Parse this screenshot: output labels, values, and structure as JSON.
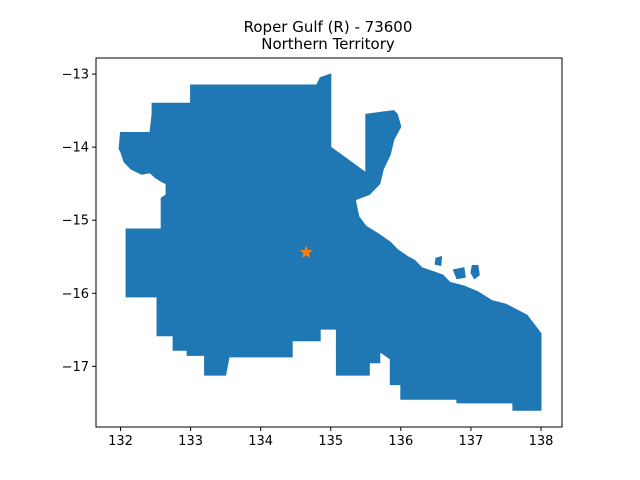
{
  "chart_data": {
    "type": "map",
    "title": "Roper Gulf (R) - 73600",
    "subtitle": "Northern Territory",
    "xlabel": "",
    "ylabel": "",
    "xlim": [
      131.65,
      138.3
    ],
    "ylim": [
      -17.83,
      -12.78
    ],
    "x_ticks": [
      132,
      133,
      134,
      135,
      136,
      137,
      138
    ],
    "y_ticks": [
      -13,
      -14,
      -15,
      -16,
      -17
    ],
    "grid": false,
    "region_color": "#1f77b4",
    "marker_color": "#ff7f0e",
    "marker": {
      "lon": 134.65,
      "lat": -15.44,
      "symbol": "star"
    },
    "region_outline": [
      [
        132.0,
        -14.05
      ],
      [
        132.05,
        -14.2
      ],
      [
        132.15,
        -14.3
      ],
      [
        132.3,
        -14.37
      ],
      [
        132.42,
        -14.35
      ],
      [
        132.5,
        -14.42
      ],
      [
        132.6,
        -14.48
      ],
      [
        132.65,
        -14.5
      ],
      [
        132.65,
        -14.65
      ],
      [
        132.58,
        -14.7
      ],
      [
        132.58,
        -15.12
      ],
      [
        132.08,
        -15.12
      ],
      [
        132.08,
        -16.05
      ],
      [
        132.52,
        -16.05
      ],
      [
        132.52,
        -16.58
      ],
      [
        132.75,
        -16.58
      ],
      [
        132.75,
        -16.78
      ],
      [
        132.95,
        -16.78
      ],
      [
        132.95,
        -16.85
      ],
      [
        133.2,
        -16.85
      ],
      [
        133.2,
        -17.12
      ],
      [
        133.5,
        -17.12
      ],
      [
        133.55,
        -16.87
      ],
      [
        134.45,
        -16.87
      ],
      [
        134.45,
        -16.65
      ],
      [
        134.85,
        -16.65
      ],
      [
        134.85,
        -16.49
      ],
      [
        135.08,
        -16.49
      ],
      [
        135.08,
        -17.12
      ],
      [
        135.55,
        -17.12
      ],
      [
        135.55,
        -16.95
      ],
      [
        135.7,
        -16.95
      ],
      [
        135.7,
        -16.8
      ],
      [
        135.85,
        -16.9
      ],
      [
        135.85,
        -17.25
      ],
      [
        136.0,
        -17.25
      ],
      [
        136.0,
        -17.45
      ],
      [
        136.8,
        -17.45
      ],
      [
        136.8,
        -17.5
      ],
      [
        137.6,
        -17.5
      ],
      [
        137.6,
        -17.6
      ],
      [
        138.0,
        -17.6
      ],
      [
        138.0,
        -16.55
      ],
      [
        137.8,
        -16.3
      ],
      [
        137.5,
        -16.15
      ],
      [
        137.3,
        -16.1
      ],
      [
        137.1,
        -15.98
      ],
      [
        136.9,
        -15.9
      ],
      [
        136.7,
        -15.85
      ],
      [
        136.6,
        -15.75
      ],
      [
        136.45,
        -15.7
      ],
      [
        136.3,
        -15.65
      ],
      [
        136.2,
        -15.55
      ],
      [
        136.1,
        -15.5
      ],
      [
        135.95,
        -15.4
      ],
      [
        135.85,
        -15.3
      ],
      [
        135.7,
        -15.2
      ],
      [
        135.5,
        -15.08
      ],
      [
        135.4,
        -14.95
      ],
      [
        135.35,
        -14.72
      ],
      [
        135.55,
        -14.65
      ],
      [
        135.7,
        -14.5
      ],
      [
        135.75,
        -14.3
      ],
      [
        135.85,
        -14.1
      ],
      [
        135.9,
        -13.9
      ],
      [
        136.0,
        -13.72
      ],
      [
        135.95,
        -13.55
      ],
      [
        135.9,
        -13.5
      ],
      [
        135.5,
        -13.55
      ],
      [
        135.5,
        -14.35
      ],
      [
        135.0,
        -14.0
      ],
      [
        135.0,
        -13.0
      ],
      [
        134.85,
        -13.05
      ],
      [
        134.8,
        -13.15
      ],
      [
        133.0,
        -13.15
      ],
      [
        133.0,
        -13.4
      ],
      [
        132.45,
        -13.4
      ],
      [
        132.45,
        -13.55
      ],
      [
        132.42,
        -13.8
      ],
      [
        132.0,
        -13.8
      ],
      [
        131.98,
        -14.03
      ]
    ],
    "islands": [
      [
        [
          136.5,
          -15.52
        ],
        [
          136.58,
          -15.5
        ],
        [
          136.57,
          -15.62
        ],
        [
          136.49,
          -15.6
        ]
      ],
      [
        [
          136.75,
          -15.68
        ],
        [
          136.9,
          -15.65
        ],
        [
          136.92,
          -15.78
        ],
        [
          136.8,
          -15.8
        ]
      ],
      [
        [
          137.02,
          -15.62
        ],
        [
          137.1,
          -15.62
        ],
        [
          137.12,
          -15.75
        ],
        [
          137.05,
          -15.8
        ],
        [
          137.0,
          -15.72
        ]
      ]
    ]
  }
}
